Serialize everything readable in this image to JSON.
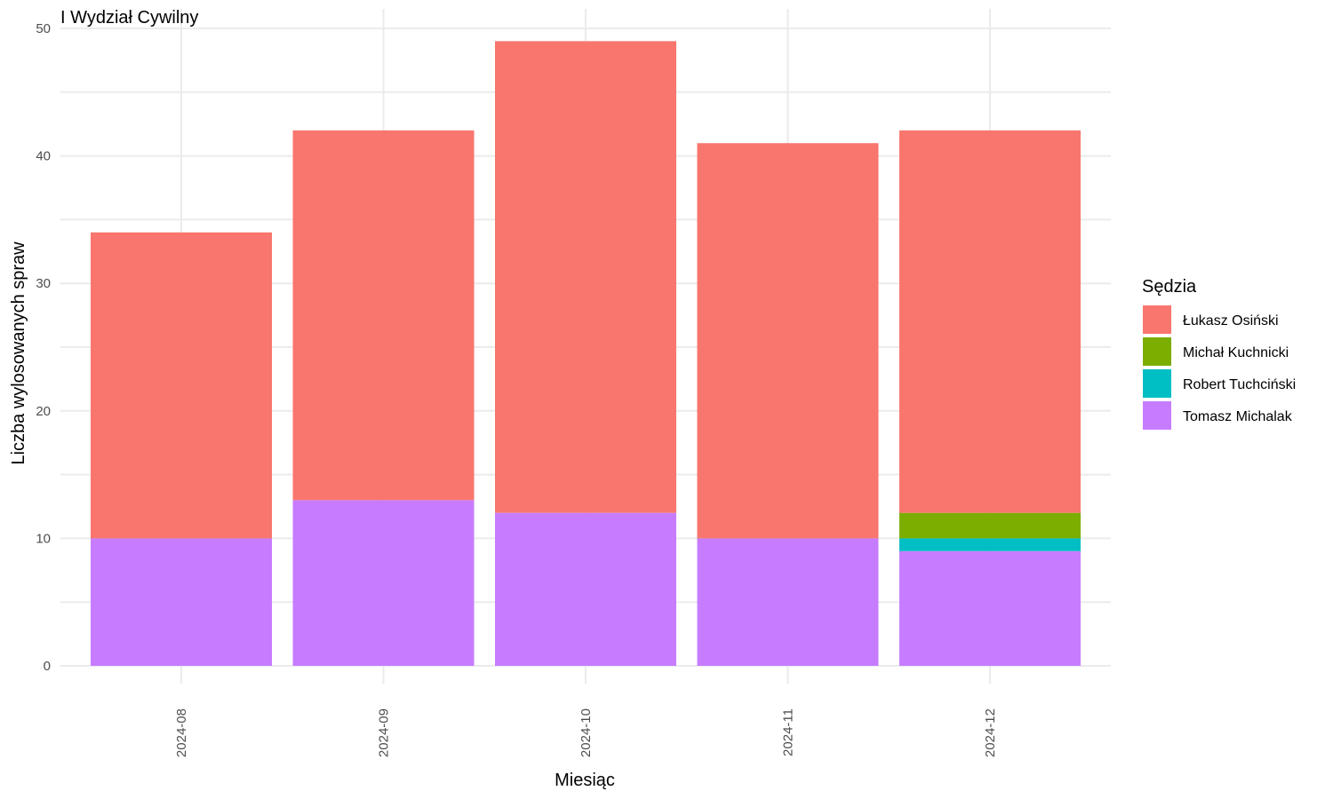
{
  "chart_data": {
    "type": "bar",
    "stacked": true,
    "title": "I Wydział Cywilny",
    "xlabel": "Miesiąc",
    "ylabel": "Liczba wylosowanych spraw",
    "categories": [
      "2024-08",
      "2024-09",
      "2024-10",
      "2024-11",
      "2024-12"
    ],
    "ylim": [
      0,
      50
    ],
    "yticks": [
      0,
      10,
      20,
      30,
      40,
      50
    ],
    "grid": true,
    "legend": {
      "title": "Sędzia",
      "position": "right"
    },
    "stack_order_bottom_to_top": [
      "Tomasz Michalak",
      "Robert Tuchciński",
      "Michał Kuchnicki",
      "Łukasz Osiński"
    ],
    "series": [
      {
        "name": "Łukasz Osiński",
        "color": "#F8766D",
        "values": [
          24,
          29,
          37,
          31,
          30
        ]
      },
      {
        "name": "Michał Kuchnicki",
        "color": "#7CAE00",
        "values": [
          0,
          0,
          0,
          0,
          2
        ]
      },
      {
        "name": "Robert Tuchciński",
        "color": "#00BFC4",
        "values": [
          0,
          0,
          0,
          0,
          1
        ]
      },
      {
        "name": "Tomasz Michalak",
        "color": "#C77CFF",
        "values": [
          10,
          13,
          12,
          10,
          9
        ]
      }
    ]
  }
}
